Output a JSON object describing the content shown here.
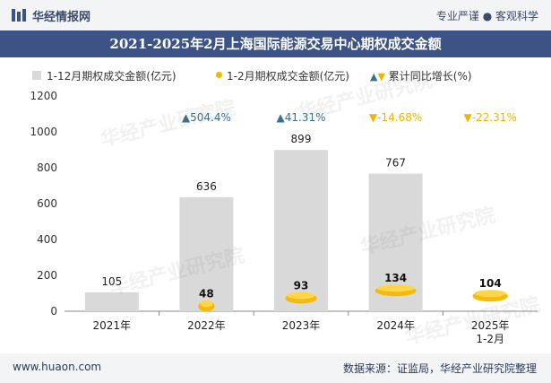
{
  "header": {
    "brand": "华经情报网",
    "tagline": "专业严谨 ● 客观科学"
  },
  "footer": {
    "url": "www.huaon.com",
    "source": "数据来源：证监局，华经产业研究院整理"
  },
  "watermark": "华经产业研究院",
  "chart_data": {
    "type": "bar",
    "title": "2021-2025年2月上海国际能源交易中心期权成交金额",
    "categories": [
      "2021年",
      "2022年",
      "2023年",
      "2024年",
      "2025年\n1-2月"
    ],
    "category_lines": [
      [
        "2021年"
      ],
      [
        "2022年"
      ],
      [
        "2023年"
      ],
      [
        "2024年"
      ],
      [
        "2025年",
        "1-2月"
      ]
    ],
    "series": [
      {
        "name": "1-12月期权成交金额(亿元)",
        "values": [
          105,
          636,
          899,
          767,
          null
        ]
      },
      {
        "name": "1-2月期权成交金额(亿元)",
        "values": [
          null,
          48,
          93,
          134,
          104
        ]
      },
      {
        "name": "累计同比增长(%)",
        "values": [
          null,
          504.4,
          41.31,
          -14.68,
          -22.31
        ]
      }
    ],
    "growth_labels": [
      null,
      "▲504.4%",
      "▲41.31%",
      "▼-14.68%",
      "▼-22.31%"
    ],
    "yticks": [
      0,
      200,
      400,
      600,
      800,
      1000,
      1200
    ],
    "ylim": [
      0,
      1200
    ],
    "colors": {
      "bar": "#d9d9d9",
      "coin": "#f5b800",
      "up": "#3b6f8f",
      "down": "#f0b400",
      "axis": "#888888"
    }
  }
}
